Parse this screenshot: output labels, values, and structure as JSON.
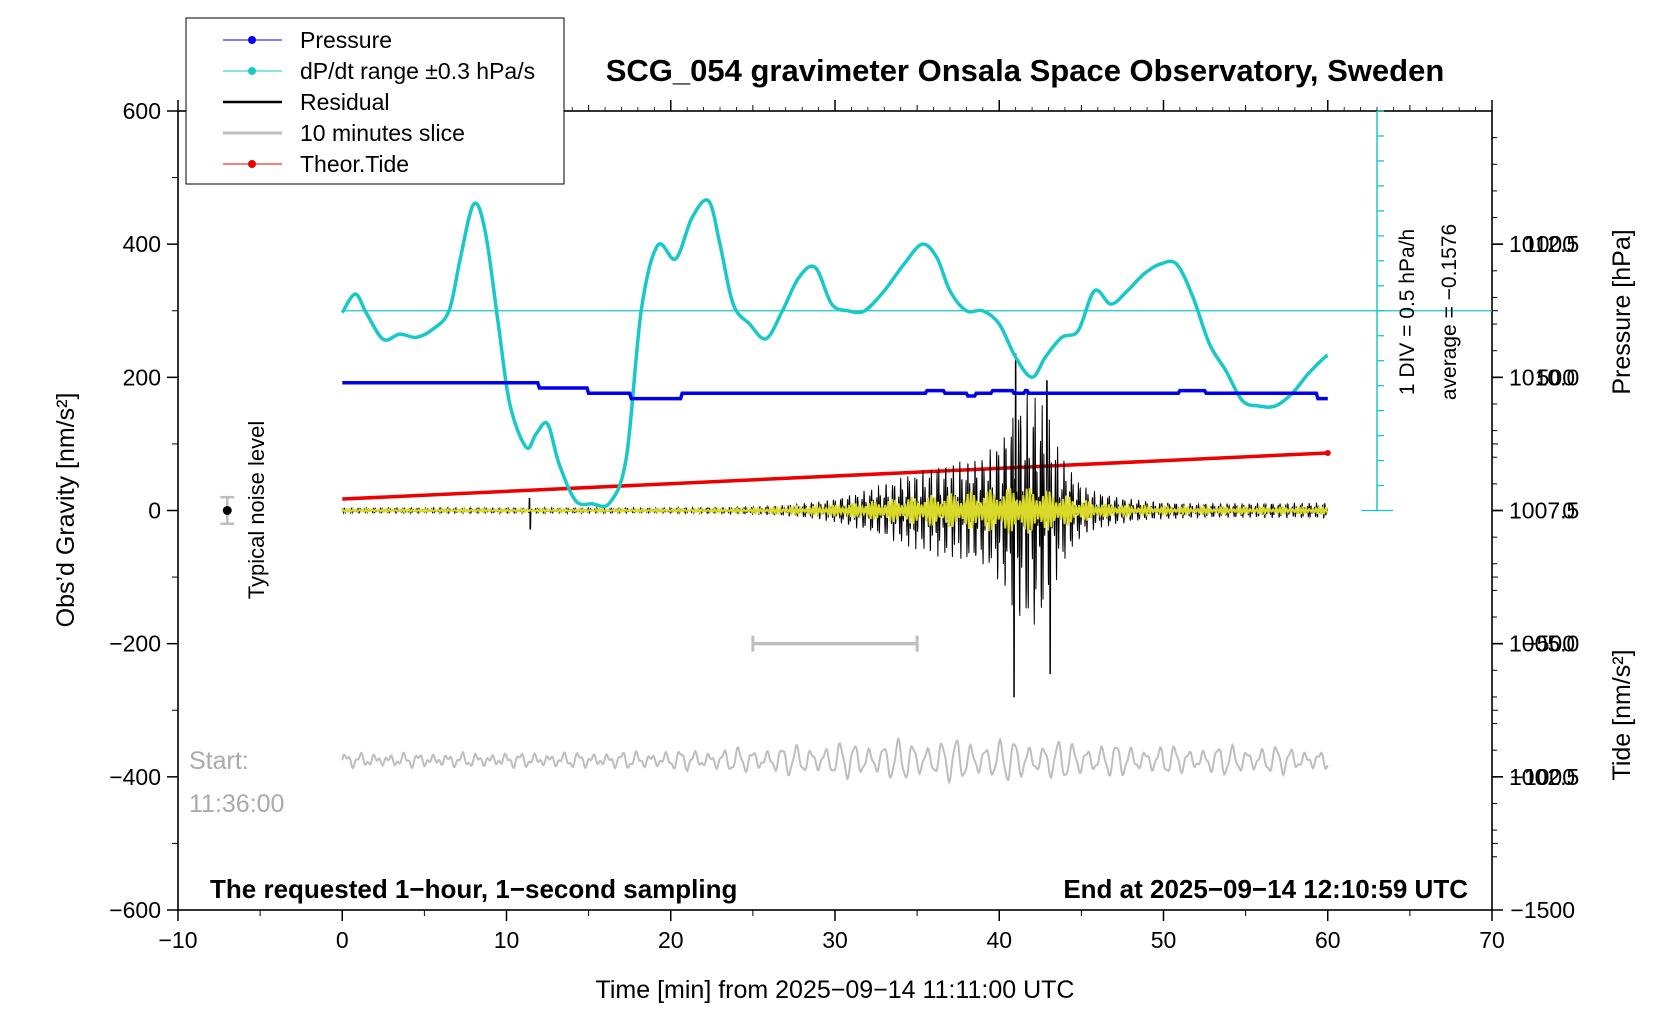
{
  "colors": {
    "pressure": "#0000ee",
    "dpdt": "#19c8c8",
    "residual": "#000000",
    "slice": "#bebebe",
    "tide": "#ee0000",
    "filtered": "#d9d92a"
  },
  "chart_data": {
    "type": "line",
    "title": "SCG_054 gravimeter Onsala Space Observatory, Sweden",
    "xlabel": "Time [min] from 2025−09−14 11:11:00 UTC",
    "ylabel_left": "Obs’d Gravity [nm/s²]",
    "ylabel_right_top": "Pressure [hPa]",
    "ylabel_right_bottom": "Tide [nm/s²]",
    "xlim": [
      -10,
      70
    ],
    "ylim_left": [
      -600,
      600
    ],
    "pressure_lim": [
      1000,
      1015
    ],
    "tide_lim": [
      -1500,
      1500
    ],
    "x_ticks": [
      -10,
      0,
      10,
      20,
      30,
      40,
      50,
      60,
      70
    ],
    "x_tick_labels": [
      "−10",
      "0",
      "10",
      "20",
      "30",
      "40",
      "50",
      "60",
      "70"
    ],
    "y_ticks_left": [
      -600,
      -400,
      -200,
      0,
      200,
      400,
      600
    ],
    "y_tick_labels_left": [
      "−600",
      "−400",
      "−200",
      "0",
      "200",
      "400",
      "600"
    ],
    "pressure_ticks": [
      1002.5,
      1005.0,
      1007.5,
      1010.0,
      1012.5
    ],
    "pressure_tick_labels": [
      "1002.5",
      "1005.0",
      "1007.5",
      "1010.0",
      "1012.5"
    ],
    "tide_ticks": [
      -1500,
      -1000,
      -500,
      0,
      500,
      1000
    ],
    "tide_tick_labels": [
      "−1500",
      "−1000",
      "−500",
      "0",
      "500",
      "1000"
    ],
    "legend": {
      "position": "top-left",
      "entries": [
        "Pressure",
        "dP/dt range ±0.3 hPa/s",
        "Residual",
        "10 minutes slice",
        "Theor.Tide"
      ]
    },
    "annotations": {
      "noise_label": "Typical noise level",
      "div_label": "1 DIV = 0.5 hPa/h",
      "average_label": "average = −0.1576",
      "start_label": "Start:",
      "start_time": "11:36:00",
      "bottom_left": "The requested 1−hour, 1−second sampling",
      "bottom_right": "End at 2025−09−14 12:10:59 UTC"
    },
    "noise_level": {
      "x": -7,
      "y": 0,
      "error": 20
    },
    "slice_window": {
      "x_start": 25,
      "x_end": 35,
      "y": -200
    },
    "dpdt_baseline_y": 300,
    "dpdt_scale": {
      "x": 63,
      "y_bottom": 0,
      "y_top": 600,
      "divisions": 16
    },
    "series": [
      {
        "name": "Pressure",
        "unit": "hPa",
        "x": [
          0,
          11.9,
          12.0,
          14.9,
          15.0,
          17.5,
          17.6,
          20.6,
          20.7,
          35.5,
          35.6,
          36.6,
          36.7,
          38.0,
          38.1,
          38.5,
          38.6,
          39.5,
          39.6,
          40.8,
          40.9,
          41.5,
          41.6,
          41.7,
          41.8,
          50.9,
          51.0,
          52.5,
          52.6,
          59.3,
          59.4,
          60
        ],
        "y": [
          1009.9,
          1009.9,
          1009.8,
          1009.8,
          1009.7,
          1009.7,
          1009.6,
          1009.6,
          1009.7,
          1009.7,
          1009.75,
          1009.75,
          1009.7,
          1009.7,
          1009.65,
          1009.65,
          1009.7,
          1009.7,
          1009.75,
          1009.75,
          1009.7,
          1009.7,
          1009.75,
          1009.75,
          1009.7,
          1009.7,
          1009.75,
          1009.75,
          1009.7,
          1009.7,
          1009.6,
          1009.6
        ]
      },
      {
        "name": "dP/dt range ±0.3 hPa/s",
        "unit": "nm/s² (left axis)",
        "x": [
          0,
          0.8,
          1.5,
          2.5,
          3.5,
          4.5,
          5.5,
          6.5,
          7.2,
          8.0,
          8.7,
          9.5,
          10.2,
          11.2,
          11.8,
          12.5,
          13.2,
          14.2,
          15.2,
          16.3,
          17.3,
          18.2,
          19.2,
          20.3,
          21.3,
          22.3,
          23.0,
          23.8,
          24.8,
          25.8,
          26.8,
          27.8,
          28.8,
          29.8,
          30.8,
          31.8,
          33.0,
          34.2,
          35.3,
          36.2,
          37.0,
          38.0,
          39.0,
          40.0,
          41.0,
          42.0,
          42.8,
          43.8,
          44.8,
          45.8,
          46.8,
          47.8,
          48.8,
          49.8,
          50.8,
          51.8,
          52.8,
          53.8,
          54.8,
          55.8,
          56.8,
          57.8,
          58.8,
          59.8,
          60
        ],
        "y": [
          297,
          325,
          295,
          257,
          265,
          260,
          272,
          300,
          380,
          460,
          420,
          280,
          160,
          95,
          115,
          130,
          70,
          15,
          10,
          12,
          80,
          300,
          398,
          378,
          440,
          465,
          400,
          310,
          280,
          258,
          300,
          350,
          365,
          310,
          300,
          300,
          330,
          370,
          400,
          380,
          330,
          300,
          300,
          280,
          230,
          200,
          230,
          260,
          270,
          330,
          310,
          330,
          355,
          370,
          370,
          320,
          250,
          210,
          165,
          157,
          157,
          175,
          205,
          230,
          232
        ]
      },
      {
        "name": "Residual",
        "unit": "nm/s²",
        "x_range": [
          0,
          60
        ],
        "y_range": [
          -280,
          240
        ],
        "peak_x": 41
      },
      {
        "name": "10 minutes slice",
        "unit": "nm/s² (offset)",
        "x_range": [
          0,
          60
        ],
        "baseline_y": -375
      },
      {
        "name": "Theor.Tide",
        "unit": "nm/s²",
        "x": [
          0,
          60
        ],
        "y": [
          43,
          216
        ]
      }
    ]
  }
}
